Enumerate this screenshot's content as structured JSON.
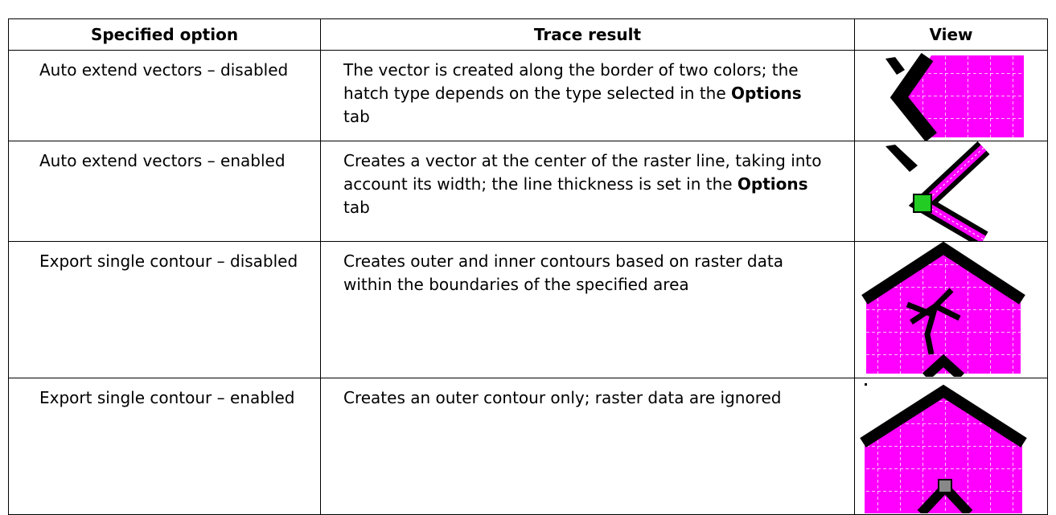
{
  "table": {
    "header": [
      "Specified option",
      "Trace result",
      "View"
    ],
    "rows": [
      {
        "option": "Auto extend vectors – disabled",
        "result": [
          "The vector is created along the border of two colors; the hatch type depends on the type selected in the ",
          "Options",
          " tab"
        ]
      },
      {
        "option": "Auto extend vectors – enabled",
        "result": [
          "Creates a vector at the center of the raster line, taking into account its width; the line thickness is set in the ",
          "Options",
          " tab"
        ]
      },
      {
        "option": "Export single contour – disabled",
        "result": [
          "Creates outer and inner contours based on raster data within the boundaries of the specified area"
        ]
      },
      {
        "option": "Export single contour – enabled",
        "result": [
          "Creates an outer contour only; raster data are ignored"
        ]
      }
    ]
  }
}
